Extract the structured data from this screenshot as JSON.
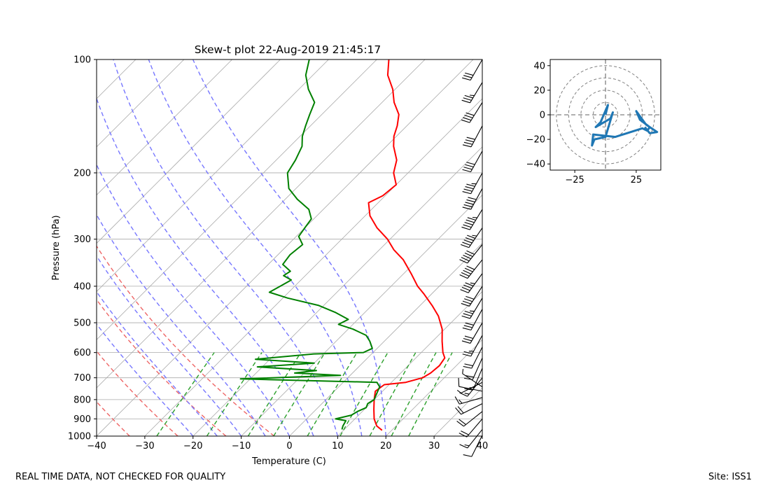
{
  "footer": {
    "left": "REAL TIME DATA, NOT CHECKED FOR QUALITY",
    "right": "Site: ISS1"
  },
  "colors": {
    "temperature": "#ff0000",
    "dewpoint": "#008000",
    "dry_adiabat": "#ee6666",
    "moist_adiabat": "#7777ff",
    "mixing_ratio": "#2ca02c",
    "isotherm": "#aaaaaa",
    "hodograph": "#1f77b4",
    "barb": "#000000"
  },
  "chart_data": [
    {
      "type": "skew-t",
      "title": "Skew-t plot 22-Aug-2019 21:45:17",
      "xlabel": "Temperature (C)",
      "ylabel": "Pressure (hPa)",
      "xlim": [
        -40,
        40
      ],
      "ylim_hpa": [
        1000,
        100
      ],
      "x_ticks": [
        -40,
        -30,
        -20,
        -10,
        0,
        10,
        20,
        30,
        40
      ],
      "y_ticks": [
        1000,
        900,
        800,
        700,
        600,
        500,
        400,
        300,
        200,
        100
      ],
      "temperature_profile": [
        {
          "p": 965,
          "t": 18.0
        },
        {
          "p": 940,
          "t": 16.0
        },
        {
          "p": 900,
          "t": 14.0
        },
        {
          "p": 850,
          "t": 12.0
        },
        {
          "p": 800,
          "t": 10.0
        },
        {
          "p": 760,
          "t": 8.5
        },
        {
          "p": 730,
          "t": 9.0
        },
        {
          "p": 720,
          "t": 13.0
        },
        {
          "p": 700,
          "t": 15.5
        },
        {
          "p": 680,
          "t": 16.2
        },
        {
          "p": 650,
          "t": 16.5
        },
        {
          "p": 620,
          "t": 16.0
        },
        {
          "p": 600,
          "t": 14.5
        },
        {
          "p": 560,
          "t": 12.0
        },
        {
          "p": 520,
          "t": 9.5
        },
        {
          "p": 480,
          "t": 6.0
        },
        {
          "p": 450,
          "t": 2.5
        },
        {
          "p": 420,
          "t": -1.5
        },
        {
          "p": 400,
          "t": -4.5
        },
        {
          "p": 370,
          "t": -8.5
        },
        {
          "p": 340,
          "t": -13.0
        },
        {
          "p": 320,
          "t": -17.0
        },
        {
          "p": 300,
          "t": -20.5
        },
        {
          "p": 280,
          "t": -25.0
        },
        {
          "p": 260,
          "t": -29.0
        },
        {
          "p": 240,
          "t": -32.0
        },
        {
          "p": 230,
          "t": -30.5
        },
        {
          "p": 215,
          "t": -30.0
        },
        {
          "p": 200,
          "t": -33.0
        },
        {
          "p": 185,
          "t": -35.0
        },
        {
          "p": 170,
          "t": -38.5
        },
        {
          "p": 160,
          "t": -40.5
        },
        {
          "p": 150,
          "t": -42.0
        },
        {
          "p": 140,
          "t": -44.0
        },
        {
          "p": 130,
          "t": -47.5
        },
        {
          "p": 120,
          "t": -50.5
        },
        {
          "p": 110,
          "t": -54.5
        },
        {
          "p": 100,
          "t": -57.5
        }
      ],
      "dewpoint_profile": [
        {
          "p": 960,
          "t": 9.5
        },
        {
          "p": 940,
          "t": 9.0
        },
        {
          "p": 910,
          "t": 8.5
        },
        {
          "p": 900,
          "t": 6.0
        },
        {
          "p": 880,
          "t": 8.5
        },
        {
          "p": 860,
          "t": 9.0
        },
        {
          "p": 840,
          "t": 10.0
        },
        {
          "p": 820,
          "t": 9.5
        },
        {
          "p": 800,
          "t": 10.0
        },
        {
          "p": 780,
          "t": 9.5
        },
        {
          "p": 760,
          "t": 9.0
        },
        {
          "p": 740,
          "t": 8.5
        },
        {
          "p": 720,
          "t": 7.0
        },
        {
          "p": 705,
          "t": -22.0
        },
        {
          "p": 690,
          "t": -2.0
        },
        {
          "p": 680,
          "t": -12.0
        },
        {
          "p": 670,
          "t": -8.0
        },
        {
          "p": 655,
          "t": -21.0
        },
        {
          "p": 640,
          "t": -10.0
        },
        {
          "p": 625,
          "t": -23.0
        },
        {
          "p": 605,
          "t": -12.0
        },
        {
          "p": 600,
          "t": -2.0
        },
        {
          "p": 585,
          "t": -1.0
        },
        {
          "p": 560,
          "t": -3.0
        },
        {
          "p": 540,
          "t": -5.0
        },
        {
          "p": 520,
          "t": -9.0
        },
        {
          "p": 505,
          "t": -13.0
        },
        {
          "p": 490,
          "t": -12.0
        },
        {
          "p": 470,
          "t": -16.0
        },
        {
          "p": 450,
          "t": -21.0
        },
        {
          "p": 430,
          "t": -29.0
        },
        {
          "p": 415,
          "t": -34.0
        },
        {
          "p": 400,
          "t": -33.0
        },
        {
          "p": 385,
          "t": -32.0
        },
        {
          "p": 375,
          "t": -34.5
        },
        {
          "p": 365,
          "t": -34.0
        },
        {
          "p": 350,
          "t": -37.0
        },
        {
          "p": 330,
          "t": -37.5
        },
        {
          "p": 310,
          "t": -37.0
        },
        {
          "p": 295,
          "t": -39.5
        },
        {
          "p": 280,
          "t": -40.0
        },
        {
          "p": 265,
          "t": -40.5
        },
        {
          "p": 250,
          "t": -43.0
        },
        {
          "p": 235,
          "t": -47.5
        },
        {
          "p": 220,
          "t": -51.5
        },
        {
          "p": 200,
          "t": -55.0
        },
        {
          "p": 185,
          "t": -56.0
        },
        {
          "p": 170,
          "t": -57.5
        },
        {
          "p": 160,
          "t": -59.5
        },
        {
          "p": 150,
          "t": -61.0
        },
        {
          "p": 140,
          "t": -62.5
        },
        {
          "p": 130,
          "t": -64.0
        },
        {
          "p": 120,
          "t": -68.0
        },
        {
          "p": 110,
          "t": -71.5
        },
        {
          "p": 100,
          "t": -74.0
        }
      ],
      "dry_adiabats_theta_k": [
        220,
        230,
        240,
        250,
        260,
        270
      ],
      "moist_adiabats_surface_t": [
        -20,
        -15,
        -10,
        -5,
        0,
        5,
        10,
        15,
        20
      ],
      "mixing_ratio_lines_g_per_kg": [
        0.4,
        1,
        2,
        3,
        5,
        8,
        12,
        16,
        20
      ],
      "wind_barbs": [
        {
          "p": 995,
          "u": 4,
          "v": 8
        },
        {
          "p": 960,
          "u": 8,
          "v": 10
        },
        {
          "p": 900,
          "u": 12,
          "v": 14
        },
        {
          "p": 860,
          "u": 15,
          "v": 12
        },
        {
          "p": 820,
          "u": 16,
          "v": 8
        },
        {
          "p": 790,
          "u": 14,
          "v": 4
        },
        {
          "p": 760,
          "u": 10,
          "v": -2
        },
        {
          "p": 740,
          "u": 6,
          "v": -4
        },
        {
          "p": 720,
          "u": 4,
          "v": 2
        },
        {
          "p": 700,
          "u": 8,
          "v": 10
        },
        {
          "p": 660,
          "u": 6,
          "v": 14
        },
        {
          "p": 620,
          "u": 8,
          "v": 18
        },
        {
          "p": 580,
          "u": 10,
          "v": 20
        },
        {
          "p": 540,
          "u": 12,
          "v": 22
        },
        {
          "p": 500,
          "u": 14,
          "v": 24
        },
        {
          "p": 460,
          "u": 14,
          "v": 26
        },
        {
          "p": 430,
          "u": 18,
          "v": 30
        },
        {
          "p": 400,
          "u": 22,
          "v": 34
        },
        {
          "p": 370,
          "u": 26,
          "v": 36
        },
        {
          "p": 340,
          "u": 30,
          "v": 38
        },
        {
          "p": 310,
          "u": 32,
          "v": 40
        },
        {
          "p": 280,
          "u": 30,
          "v": 44
        },
        {
          "p": 250,
          "u": 28,
          "v": 46
        },
        {
          "p": 220,
          "u": 24,
          "v": 44
        },
        {
          "p": 200,
          "u": 22,
          "v": 40
        },
        {
          "p": 175,
          "u": 20,
          "v": 36
        },
        {
          "p": 150,
          "u": 18,
          "v": 34
        },
        {
          "p": 130,
          "u": 20,
          "v": 32
        },
        {
          "p": 115,
          "u": 18,
          "v": 30
        },
        {
          "p": 100,
          "u": 16,
          "v": 28
        }
      ]
    },
    {
      "type": "hodograph",
      "xlim": [
        -45,
        45
      ],
      "ylim": [
        -45,
        45
      ],
      "x_ticks": [
        -25,
        25
      ],
      "y_ticks": [
        40,
        20,
        0,
        -20,
        -40
      ],
      "ring_speeds": [
        10,
        20,
        30,
        40
      ],
      "points": [
        {
          "u": 0,
          "v": 0
        },
        {
          "u": 2,
          "v": 8
        },
        {
          "u": -4,
          "v": -6
        },
        {
          "u": -8,
          "v": -10
        },
        {
          "u": 4,
          "v": -3
        },
        {
          "u": 6,
          "v": 2
        },
        {
          "u": 0,
          "v": -18
        },
        {
          "u": -9,
          "v": -20
        },
        {
          "u": -11,
          "v": -25
        },
        {
          "u": -10,
          "v": -16
        },
        {
          "u": 8,
          "v": -18
        },
        {
          "u": 30,
          "v": -11
        },
        {
          "u": 34,
          "v": -13
        },
        {
          "u": 36,
          "v": -10
        },
        {
          "u": 28,
          "v": -4
        },
        {
          "u": 25,
          "v": 3
        },
        {
          "u": 33,
          "v": -8
        },
        {
          "u": 42,
          "v": -14
        },
        {
          "u": 36,
          "v": -15
        },
        {
          "u": 32,
          "v": -10
        }
      ]
    }
  ]
}
